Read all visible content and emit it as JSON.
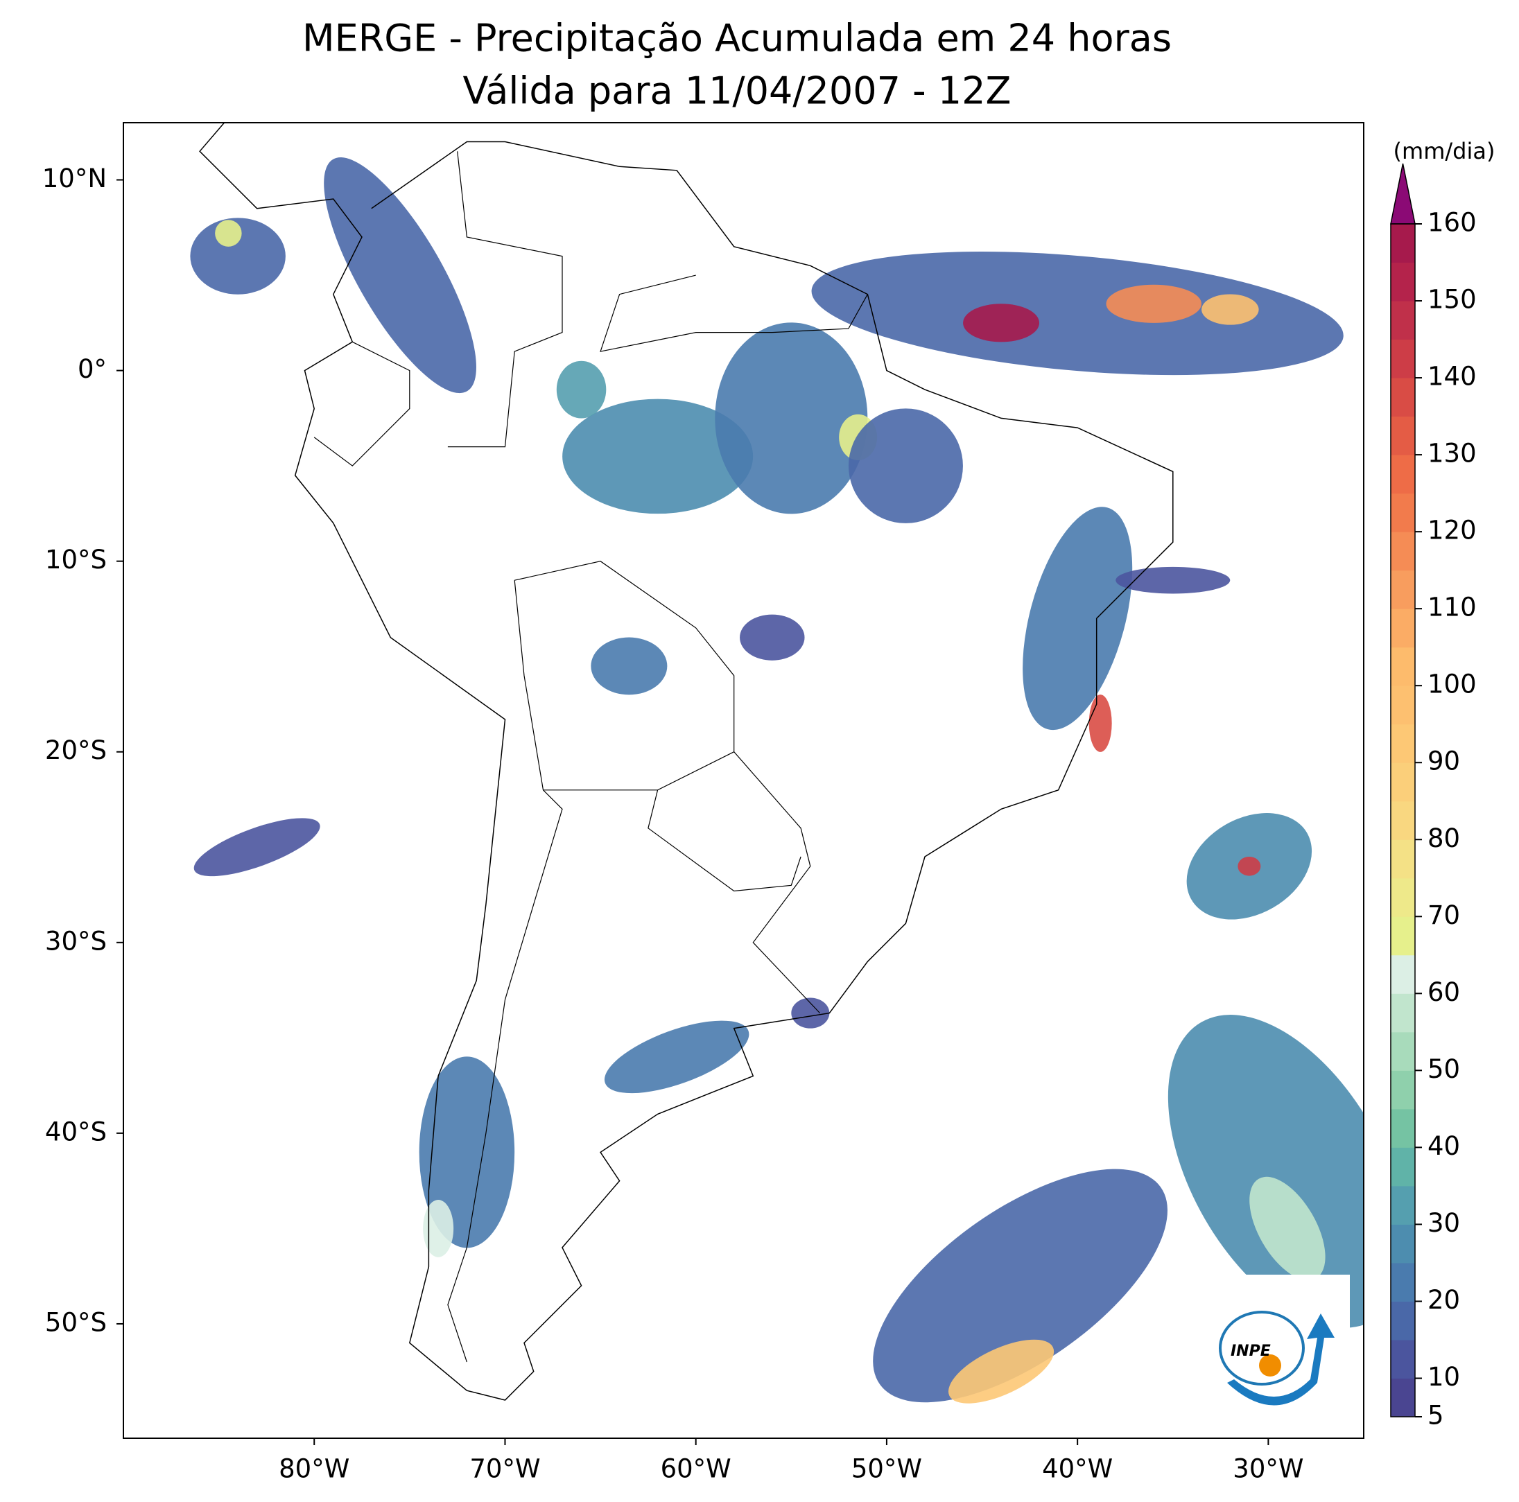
{
  "chart_data": {
    "type": "contour",
    "title": "MERGE - Precipitação Acumulada em 24 horas",
    "subtitle": "Válida para 11/04/2007 - 12Z",
    "xlim": [
      -90,
      -25
    ],
    "ylim": [
      -56,
      13
    ],
    "xticks": [
      {
        "value": -80,
        "label": "80°W"
      },
      {
        "value": -70,
        "label": "70°W"
      },
      {
        "value": -60,
        "label": "60°W"
      },
      {
        "value": -50,
        "label": "50°W"
      },
      {
        "value": -40,
        "label": "40°W"
      },
      {
        "value": -30,
        "label": "30°W"
      }
    ],
    "yticks": [
      {
        "value": 10,
        "label": "10°N"
      },
      {
        "value": 0,
        "label": "0°"
      },
      {
        "value": -10,
        "label": "10°S"
      },
      {
        "value": -20,
        "label": "20°S"
      },
      {
        "value": -30,
        "label": "30°S"
      },
      {
        "value": -40,
        "label": "40°S"
      },
      {
        "value": -50,
        "label": "50°S"
      }
    ],
    "colorbar": {
      "label": "(mm/dia)",
      "lim": [
        5,
        160
      ],
      "ticks": [
        5,
        10,
        20,
        30,
        40,
        50,
        60,
        70,
        80,
        90,
        100,
        110,
        120,
        130,
        140,
        150,
        160
      ],
      "levels": [
        5,
        10,
        15,
        20,
        25,
        30,
        35,
        40,
        45,
        50,
        55,
        60,
        65,
        70,
        75,
        80,
        85,
        90,
        95,
        100,
        105,
        110,
        115,
        120,
        125,
        130,
        135,
        140,
        145,
        150,
        155,
        160
      ],
      "colors": [
        "#4a4591",
        "#4b559e",
        "#4a68a8",
        "#4a7bae",
        "#4d8daf",
        "#559faf",
        "#60b3a8",
        "#75c3a3",
        "#8fd0ac",
        "#a8dbbb",
        "#c1e5cd",
        "#dcefe5",
        "#e6f08c",
        "#eee98a",
        "#f4e186",
        "#f9d780",
        "#fbcf7a",
        "#fdc875",
        "#fdc070",
        "#fdbb6c",
        "#fbac65",
        "#f89d5e",
        "#f58c55",
        "#f27b4c",
        "#ee6c47",
        "#e45c45",
        "#d94c45",
        "#cd3d47",
        "#c0304a",
        "#b4234b",
        "#a61a4c"
      ],
      "extend_color": "#8b0a75"
    },
    "logo_text": "INPE"
  }
}
